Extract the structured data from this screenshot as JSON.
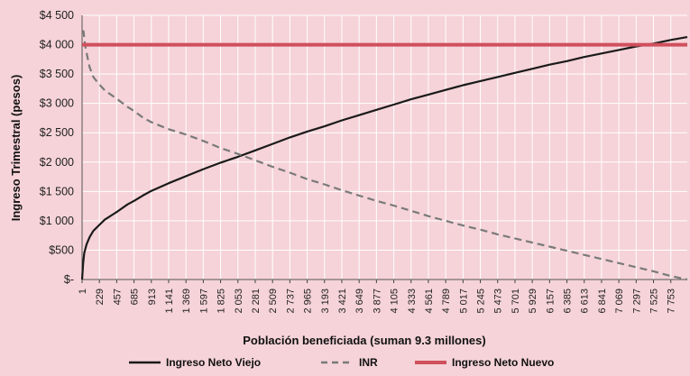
{
  "chart_data": {
    "type": "line",
    "title": "",
    "xlabel": "Población beneficiada (suman 9.3 millones)",
    "ylabel": "Ingreso Trimestral (pesos)",
    "ylim": [
      0,
      4500
    ],
    "y_ticks": [
      0,
      500,
      1000,
      1500,
      2000,
      2500,
      3000,
      3500,
      4000,
      4500
    ],
    "y_tick_labels": [
      "$-",
      "$500",
      "$1 000",
      "$1 500",
      "$2 000",
      "$2 500",
      "$3 000",
      "$3 500",
      "$4 000",
      "$4 500"
    ],
    "x_ticks": [
      1,
      229,
      457,
      685,
      913,
      1141,
      1369,
      1597,
      1825,
      2053,
      2281,
      2509,
      2737,
      2965,
      3193,
      3421,
      3649,
      3877,
      4105,
      4333,
      4561,
      4789,
      5017,
      5245,
      5473,
      5701,
      5929,
      6157,
      6385,
      6613,
      6841,
      7069,
      7297,
      7525,
      7753
    ],
    "x_tick_labels": [
      "1",
      "229",
      "457",
      "685",
      "913",
      "1 141",
      "1 369",
      "1 597",
      "1 825",
      "2 053",
      "2 281",
      "2 509",
      "2 737",
      "2 965",
      "3 193",
      "3 421",
      "3 649",
      "3 877",
      "4 105",
      "4 333",
      "4 561",
      "4 789",
      "5 017",
      "5 245",
      "5 473",
      "5 701",
      "5 929",
      "6 157",
      "6 385",
      "6 613",
      "6 841",
      "7 069",
      "7 297",
      "7 525",
      "7 753"
    ],
    "xlim": [
      1,
      7970
    ],
    "grid": true,
    "legend_position": "bottom",
    "series": [
      {
        "name": "Ingreso Neto Viejo",
        "color": "#1a1a1a",
        "style": "solid",
        "x": [
          1,
          15,
          30,
          60,
          100,
          150,
          229,
          300,
          457,
          600,
          685,
          800,
          913,
          1141,
          1369,
          1597,
          1825,
          2053,
          2281,
          2509,
          2737,
          2965,
          3193,
          3421,
          3649,
          3877,
          4105,
          4333,
          4561,
          4789,
          5017,
          5245,
          5473,
          5701,
          5929,
          6157,
          6385,
          6613,
          6841,
          7069,
          7297,
          7525,
          7753,
          7970
        ],
        "y": [
          0,
          280,
          450,
          600,
          720,
          830,
          930,
          1020,
          1150,
          1280,
          1340,
          1430,
          1510,
          1640,
          1760,
          1880,
          1990,
          2090,
          2200,
          2310,
          2420,
          2520,
          2610,
          2710,
          2800,
          2890,
          2980,
          3070,
          3150,
          3230,
          3310,
          3380,
          3450,
          3520,
          3590,
          3660,
          3720,
          3790,
          3850,
          3910,
          3970,
          4020,
          4080,
          4130
        ]
      },
      {
        "name": "INR",
        "color": "#7a7a7a",
        "style": "dashed",
        "x": [
          1,
          20,
          40,
          70,
          100,
          150,
          229,
          300,
          457,
          600,
          685,
          800,
          913,
          1141,
          1369,
          1597,
          1825,
          2053,
          2281,
          2509,
          2737,
          2965,
          3193,
          3421,
          3649,
          3877,
          4105,
          4333,
          4561,
          4789,
          5017,
          5245,
          5473,
          5701,
          5929,
          6157,
          6385,
          6613,
          6841,
          7069,
          7297,
          7525,
          7753,
          7970
        ],
        "y": [
          4230,
          4230,
          4000,
          3800,
          3620,
          3450,
          3320,
          3220,
          3080,
          2940,
          2870,
          2760,
          2680,
          2560,
          2470,
          2360,
          2240,
          2140,
          2030,
          1920,
          1820,
          1710,
          1620,
          1520,
          1430,
          1340,
          1260,
          1170,
          1080,
          1000,
          920,
          850,
          770,
          700,
          630,
          560,
          490,
          420,
          350,
          280,
          210,
          140,
          60,
          0
        ]
      },
      {
        "name": "Ingreso Neto Nuevo",
        "color": "#d0505d",
        "style": "solid",
        "x": [
          1,
          7970
        ],
        "y": [
          4000,
          4000
        ]
      }
    ]
  }
}
